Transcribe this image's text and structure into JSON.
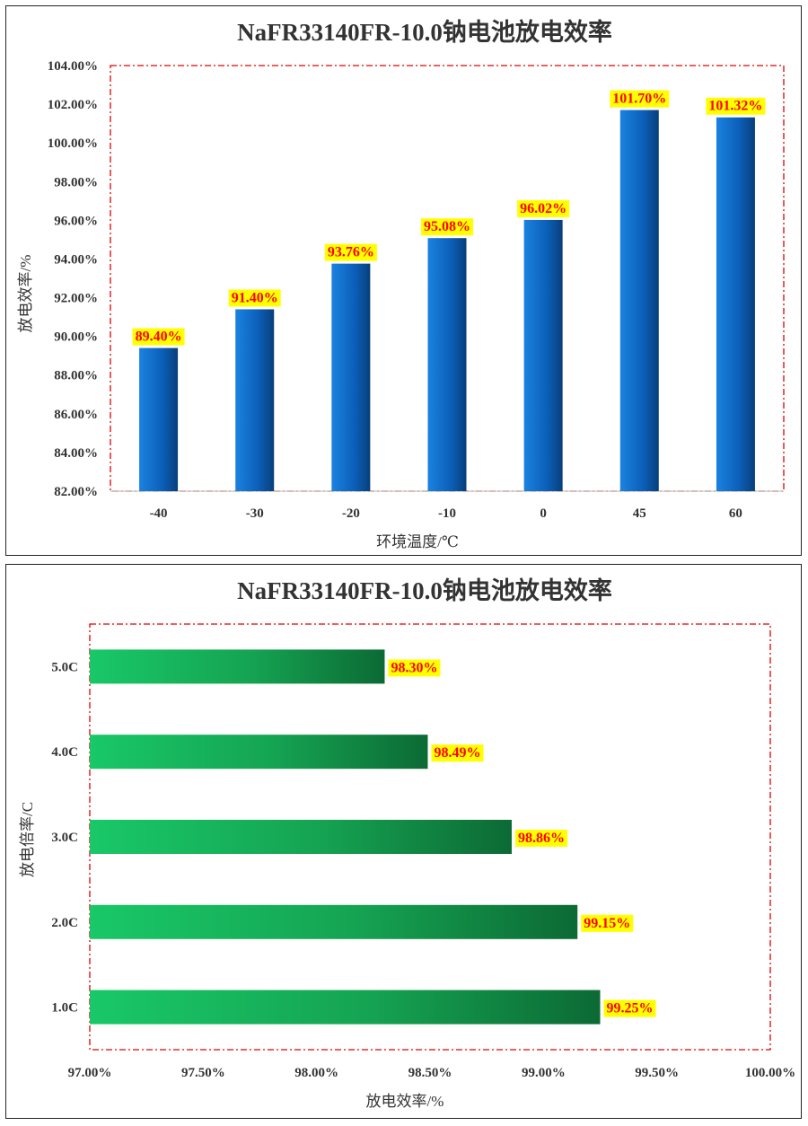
{
  "chart_data": [
    {
      "type": "bar",
      "title": "NaFR33140FR-10.0钠电池放电效率",
      "xlabel": "环境温度/℃",
      "ylabel": "放电效率/%",
      "categories": [
        "-40",
        "-30",
        "-20",
        "-10",
        "0",
        "45",
        "60"
      ],
      "values": [
        89.4,
        91.4,
        93.76,
        95.08,
        96.02,
        101.7,
        101.32
      ],
      "data_labels": [
        "89.40%",
        "91.40%",
        "93.76%",
        "95.08%",
        "96.02%",
        "101.70%",
        "101.32%"
      ],
      "ylim": [
        82,
        104
      ],
      "yticks": [
        "82.00%",
        "84.00%",
        "86.00%",
        "88.00%",
        "90.00%",
        "92.00%",
        "94.00%",
        "96.00%",
        "98.00%",
        "100.00%",
        "102.00%",
        "104.00%"
      ],
      "grid": false,
      "bar_color": "#0b6fcf",
      "label_bg": "#ffff00",
      "label_color": "#ff0000",
      "plot_border_color": "#e00000"
    },
    {
      "type": "bar",
      "orientation": "horizontal",
      "title": "NaFR33140FR-10.0钠电池放电效率",
      "xlabel": "放电效率/%",
      "ylabel": "放电倍率/C",
      "categories": [
        "5.0C",
        "4.0C",
        "3.0C",
        "2.0C",
        "1.0C"
      ],
      "values": [
        98.3,
        98.49,
        98.86,
        99.15,
        99.25
      ],
      "data_labels": [
        "98.30%",
        "98.49%",
        "98.86%",
        "99.15%",
        "99.25%"
      ],
      "xlim": [
        97,
        100
      ],
      "xticks": [
        "97.00%",
        "97.50%",
        "98.00%",
        "98.50%",
        "99.00%",
        "99.50%",
        "100.00%"
      ],
      "grid": false,
      "bar_color": "#1dbe62",
      "label_bg": "#ffff00",
      "label_color": "#ff0000",
      "plot_border_color": "#e00000"
    }
  ]
}
